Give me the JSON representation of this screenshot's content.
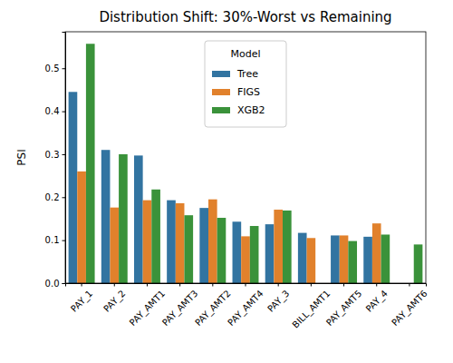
{
  "chart_data": {
    "type": "bar",
    "title": "Distribution Shift: 30%-Worst vs Remaining",
    "y_label": "PSI",
    "legend_title": "Model",
    "legend": "upper center",
    "grid": false,
    "categories": [
      "PAY_1",
      "PAY_2",
      "PAY_AMT1",
      "PAY_AMT3",
      "PAY_AMT2",
      "PAY_AMT4",
      "PAY_3",
      "BILL_AMT1",
      "PAY_AMT5",
      "PAY_4",
      "PAY_AMT6"
    ],
    "series": [
      {
        "name": "Tree",
        "color": "#3274a1",
        "values": [
          0.445,
          0.31,
          0.297,
          0.193,
          0.175,
          0.143,
          0.137,
          0.117,
          0.111,
          0.108,
          null
        ]
      },
      {
        "name": "FIGS",
        "color": "#e1812c",
        "values": [
          0.26,
          0.176,
          0.193,
          0.186,
          0.195,
          0.109,
          0.171,
          0.105,
          0.111,
          0.139,
          null
        ]
      },
      {
        "name": "XGB2",
        "color": "#3a923a",
        "values": [
          0.557,
          0.3,
          0.218,
          0.158,
          0.152,
          0.133,
          0.169,
          null,
          0.098,
          0.113,
          0.09
        ]
      }
    ],
    "ylim": [
      0,
      0.585
    ],
    "yticks": [
      {
        "value": 0,
        "label": "0.0"
      },
      0.1,
      0.2,
      0.3,
      0.4,
      0.5
    ]
  }
}
